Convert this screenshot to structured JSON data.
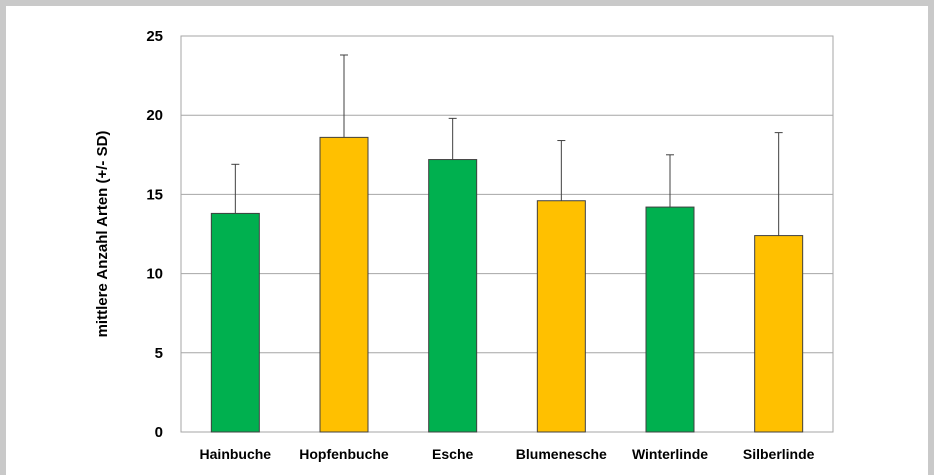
{
  "chart_data": {
    "type": "bar",
    "title": "",
    "xlabel": "",
    "ylabel": "mittlere Anzahl Arten (+/- SD)",
    "ylim": [
      0,
      25
    ],
    "yticks": [
      0,
      5,
      10,
      15,
      20,
      25
    ],
    "grid": true,
    "legend": "none",
    "categories": [
      "Hainbuche",
      "Hopfenbuche",
      "Esche",
      "Blumenesche",
      "Winterlinde",
      "Silberlinde"
    ],
    "values": [
      13.8,
      18.6,
      17.2,
      14.6,
      14.2,
      12.4
    ],
    "sd": [
      3.1,
      5.2,
      2.6,
      3.8,
      3.3,
      6.5
    ],
    "bar_colors": [
      "#00b04f",
      "#ffc000",
      "#00b04f",
      "#ffc000",
      "#00b04f",
      "#ffc000"
    ]
  }
}
